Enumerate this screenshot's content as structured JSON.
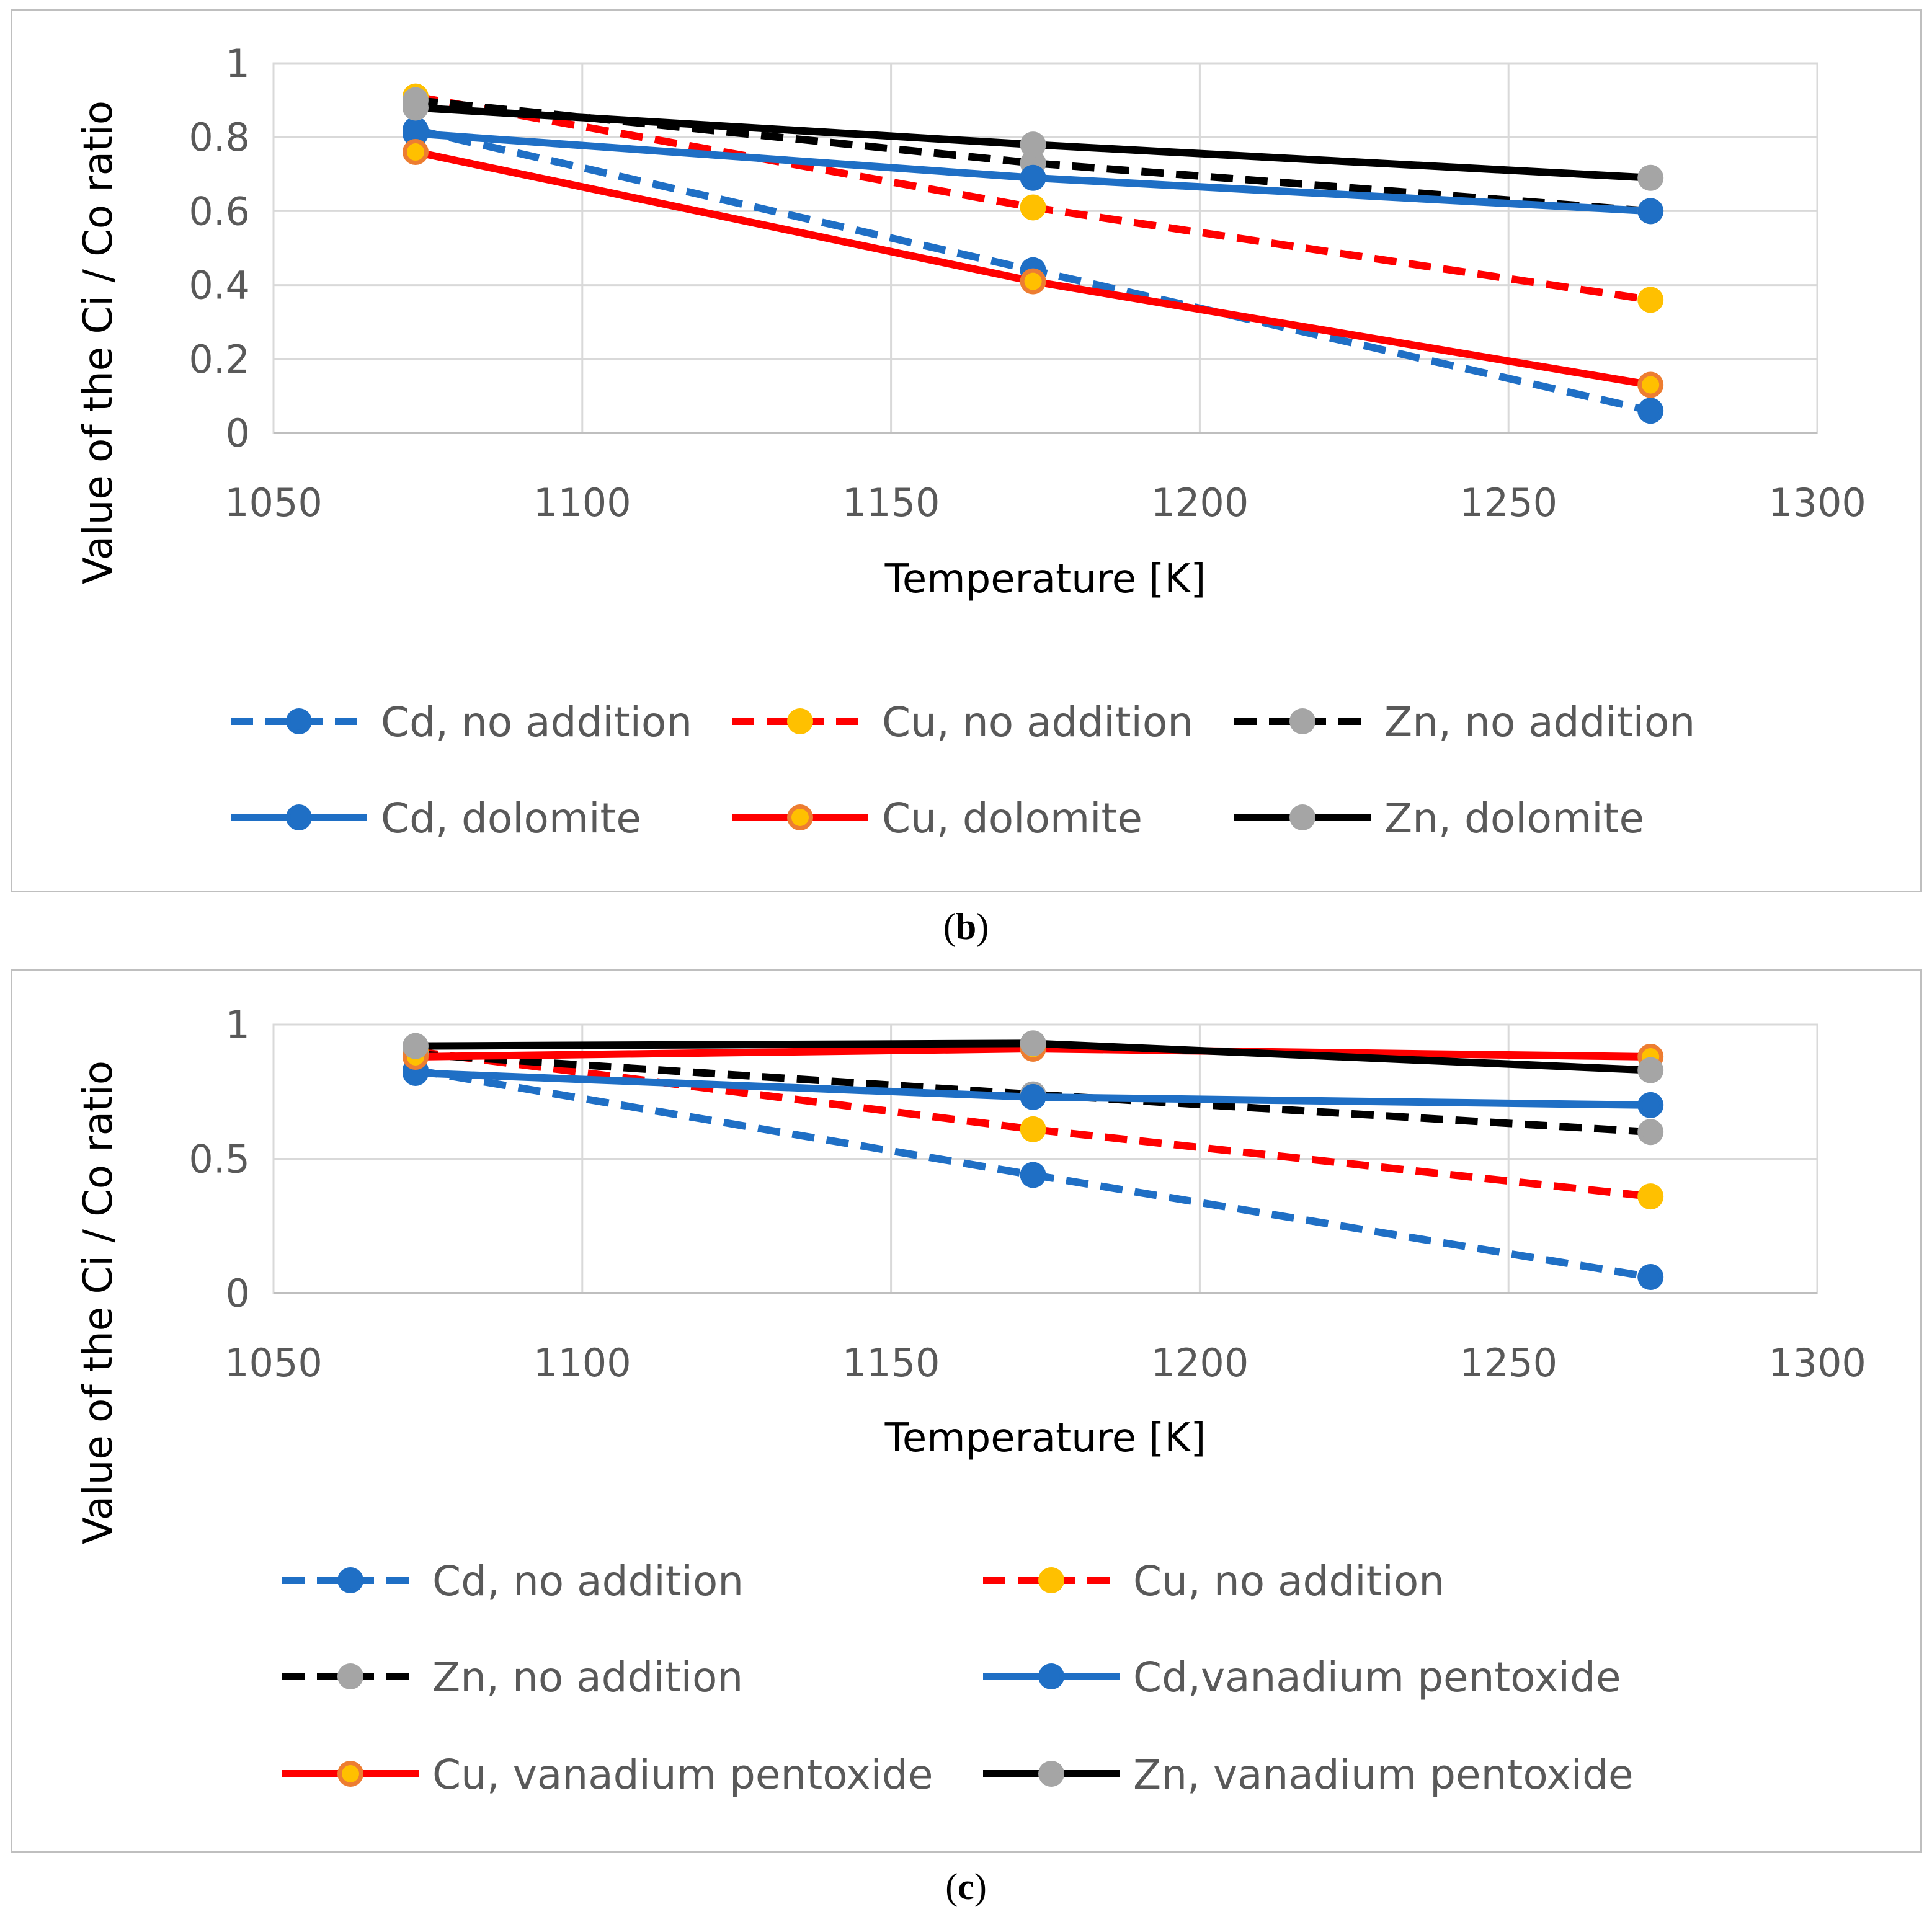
{
  "chart_data": [
    {
      "panel": "b",
      "caption_label": "b",
      "type": "line",
      "xlabel": "Temperature [K]",
      "ylabel": "Value of the Ci / Co ratio",
      "xlim": [
        1050,
        1300
      ],
      "ylim": [
        0,
        1
      ],
      "xticks": [
        "1050",
        "1100",
        "1150",
        "1200",
        "1250",
        "1300"
      ],
      "yticks": [
        "0",
        "0.2",
        "0.4",
        "0.6",
        "0.8",
        "1"
      ],
      "x": [
        1073,
        1173,
        1273
      ],
      "series": [
        {
          "name": "Cd, no addition",
          "values": [
            0.82,
            0.44,
            0.06
          ],
          "color": "#1f6fc5",
          "marker": "#1f6fc5",
          "marker_edge": "#1f6fc5",
          "dashed": true
        },
        {
          "name": "Cu, no addition",
          "values": [
            0.91,
            0.61,
            0.36
          ],
          "color": "#ff0000",
          "marker": "#ffc000",
          "marker_edge": "#ffc000",
          "dashed": true
        },
        {
          "name": "Zn, no addition",
          "values": [
            0.9,
            0.73,
            0.6
          ],
          "color": "#000000",
          "marker": "#a5a5a5",
          "marker_edge": "#a5a5a5",
          "dashed": true
        },
        {
          "name": "Cd, dolomite",
          "values": [
            0.81,
            0.69,
            0.6
          ],
          "color": "#1f6fc5",
          "marker": "#1f6fc5",
          "marker_edge": "#1f6fc5",
          "dashed": false
        },
        {
          "name": "Cu, dolomite",
          "values": [
            0.76,
            0.41,
            0.13
          ],
          "color": "#ff0000",
          "marker": "#ffc000",
          "marker_edge": "#ed7d31",
          "dashed": false
        },
        {
          "name": "Zn, dolomite",
          "values": [
            0.88,
            0.78,
            0.69
          ],
          "color": "#000000",
          "marker": "#a5a5a5",
          "marker_edge": "#a5a5a5",
          "dashed": false
        }
      ]
    },
    {
      "panel": "c",
      "caption_label": "c",
      "type": "line",
      "xlabel": "Temperature [K]",
      "ylabel": "Value of the Ci / Co ratio",
      "xlim": [
        1050,
        1300
      ],
      "ylim": [
        0,
        1
      ],
      "xticks": [
        "1050",
        "1100",
        "1150",
        "1200",
        "1250",
        "1300"
      ],
      "yticks": [
        "0",
        "0.5",
        "1"
      ],
      "x": [
        1073,
        1173,
        1273
      ],
      "series": [
        {
          "name": "Cd, no addition",
          "values": [
            0.83,
            0.44,
            0.06
          ],
          "color": "#1f6fc5",
          "marker": "#1f6fc5",
          "marker_edge": "#1f6fc5",
          "dashed": true
        },
        {
          "name": "Cu, no addition",
          "values": [
            0.9,
            0.61,
            0.36
          ],
          "color": "#ff0000",
          "marker": "#ffc000",
          "marker_edge": "#ffc000",
          "dashed": true
        },
        {
          "name": "Zn, no addition",
          "values": [
            0.89,
            0.74,
            0.6
          ],
          "color": "#000000",
          "marker": "#a5a5a5",
          "marker_edge": "#a5a5a5",
          "dashed": true
        },
        {
          "name": "Cd,vanadium pentoxide",
          "values": [
            0.82,
            0.73,
            0.7
          ],
          "color": "#1f6fc5",
          "marker": "#1f6fc5",
          "marker_edge": "#1f6fc5",
          "dashed": false
        },
        {
          "name": "Cu, vanadium pentoxide",
          "values": [
            0.88,
            0.91,
            0.88
          ],
          "color": "#ff0000",
          "marker": "#ffc000",
          "marker_edge": "#ed7d31",
          "dashed": false
        },
        {
          "name": "Zn, vanadium pentoxide",
          "values": [
            0.92,
            0.93,
            0.83
          ],
          "color": "#000000",
          "marker": "#a5a5a5",
          "marker_edge": "#a5a5a5",
          "dashed": false
        }
      ]
    }
  ]
}
